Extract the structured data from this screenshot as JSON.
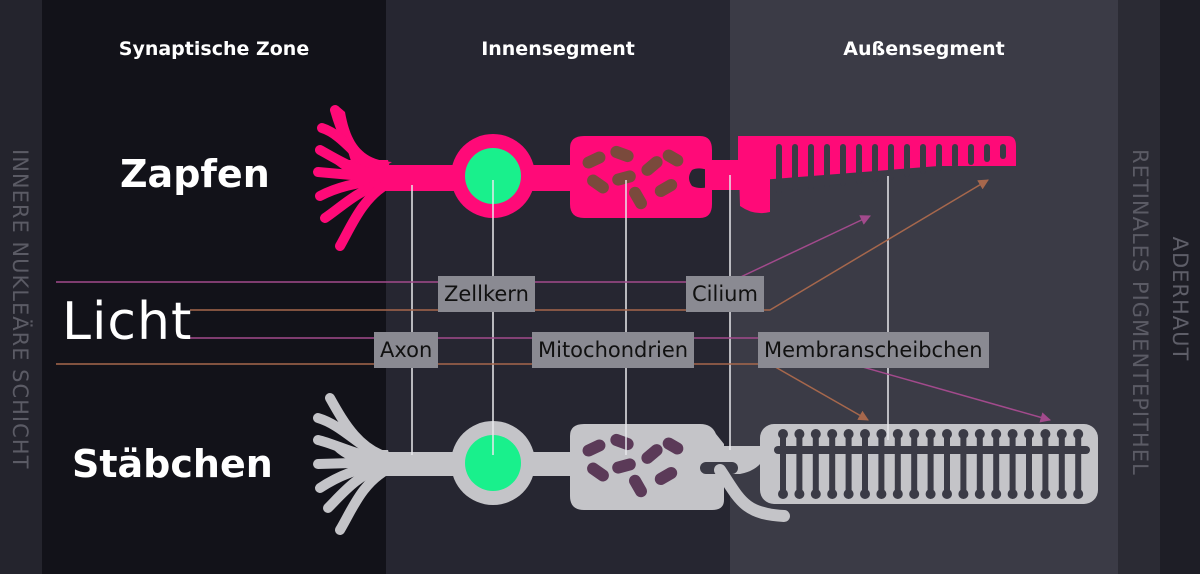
{
  "zones": {
    "synaptic": "Synaptische Zone",
    "inner": "Innensegment",
    "outer": "Außensegment"
  },
  "cells": {
    "cone": "Zapfen",
    "rod": "Stäbchen"
  },
  "light": "Licht",
  "labels": {
    "nucleus": "Zellkern",
    "cilium": "Cilium",
    "axon": "Axon",
    "mitochondria": "Mitochondrien",
    "discs": "Membranscheibchen"
  },
  "side_labels": {
    "left": "INNERE NUKLEÄRE SCHICHT",
    "rpe": "RETINALES PIGMENTEPITHEL",
    "choroid": "ADERHAUT"
  },
  "colors": {
    "cone": "#ff0a78",
    "rod": "#c4c4c8",
    "nucleus": "#19f08c",
    "mito_cone": "#7a4a3c",
    "mito_rod": "#5b3a58",
    "light_purple": "#a24a8c",
    "light_brown": "#a6674c"
  }
}
